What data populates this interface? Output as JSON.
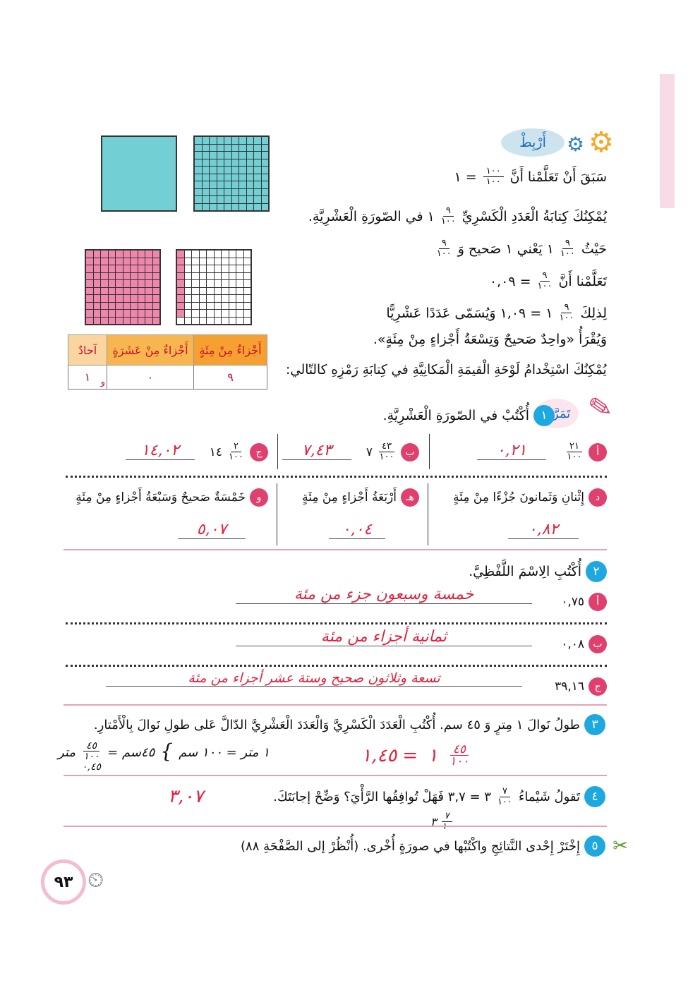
{
  "connect": {
    "badge": "أَرْبِطْ",
    "lines": [
      [
        "سَبَقَ أَنْ تَعَلَّمْنا أَنَّ",
        {
          "n": "١٠٠",
          "d": "١٠٠"
        },
        "= ١"
      ],
      [
        "يُمْكِنُكَ كِتابَةُ الْعَدَدِ الْكَسْرِيِّ",
        {
          "n": "٩",
          "d": "١٠٠"
        },
        "١ في الصّورَةِ الْعَشْرِيَّةِ."
      ],
      [
        "حَيْثُ",
        {
          "n": "٩",
          "d": "١٠٠"
        },
        "١ يَعْني ١ صَحيح وَ",
        {
          "n": "٩",
          "d": "١٠٠"
        }
      ],
      [
        "تَعَلَّمْنا أَنَّ",
        {
          "n": "٩",
          "d": "١٠٠"
        },
        "= ٠,٠٩"
      ],
      [
        "لِذلِكَ",
        {
          "n": "٩",
          "d": "١٠٠"
        },
        "١ = ١,٠٩ وَيُسَمّى عَدَدًا عَشْرِيًّا"
      ],
      [
        "وَيُقْرَأُ «واحِدٌ صَحيحٌ وَتِسْعَةُ أَجْزاءٍ مِنْ مِئَةٍ»."
      ],
      [
        "يُمْكِنُكَ اسْتِخْدامُ لَوْحَةِ الْقيمَةِ الْمَكانِيَّةِ في كِتابَةِ رَمْزِهِ كالتّالي:"
      ]
    ]
  },
  "models": {
    "hundredths_shaded": 9
  },
  "place_value": {
    "headers": [
      "أَجْزاءٌ مِنْ مِئَةٍ",
      "أَجْزاءٌ مِنْ عَشَرَةٍ",
      "آحادٌ"
    ],
    "values": [
      "٩",
      "٠",
      "١"
    ],
    "separator": "و",
    "colors": [
      "#f5a030",
      "#f8b650",
      "#fbd5a0"
    ]
  },
  "practice": {
    "label": "تَمَرَّنْ",
    "ex1": {
      "number": "١",
      "prompt": "أُكْتُبْ في الصّورَةِ الْعَشْرِيَّةِ.",
      "items": [
        {
          "letter": "أ",
          "whole": "",
          "n": "٢١",
          "d": "١٠٠",
          "answer": "٠,٢١"
        },
        {
          "letter": "ب",
          "whole": "٧",
          "n": "٤٣",
          "d": "١٠٠",
          "answer": "٧,٤٣"
        },
        {
          "letter": "ج",
          "whole": "١٤",
          "n": "٢",
          "d": "١٠٠",
          "answer": "١٤,٠٢"
        },
        {
          "letter": "د",
          "text": "إِثْنانِ وَثَمانونَ جُزْءًا مِنْ مِئَةٍ",
          "answer": "٠,٨٢"
        },
        {
          "letter": "هـ",
          "text": "أَرْبَعَةُ أَجْزاءٍ مِنْ مِئَةٍ",
          "answer": "٠,٠٤"
        },
        {
          "letter": "و",
          "text": "خَمْسَةٌ صَحيحٌ وَسَبْعَةُ أَجْزاءٍ مِنْ مِئَةٍ",
          "answer": "٥,٠٧"
        }
      ]
    },
    "ex2": {
      "number": "٢",
      "prompt": "أُكْتُبِ الِاسْمَ اللَّفْظِيَّ.",
      "items": [
        {
          "letter": "أ",
          "value": "٠,٧٥",
          "answer": "خمسة وسبعون جزء من مئة"
        },
        {
          "letter": "ب",
          "value": "٠,٠٨",
          "answer": "ثمانية أجزاء من مئة"
        },
        {
          "letter": "ج",
          "value": "٣٩,١٦",
          "answer": "تسعة وثلاثون صحيح وستة عشر أجزاء من مئة"
        }
      ]
    },
    "ex3": {
      "number": "٣",
      "prompt": "طولُ نَوالَ ١ مِترٍ وَ ٤٥ سم. أُكْتُبِ الْعَدَدَ الْكَسْرِيَّ وَالْعَدَدَ الْعَشْرِيَّ الدّالَّ عَلى طولِ نَوالَ بِالْأَمْتارِ.",
      "work": {
        "line1": "١ متر = ١٠٠ سم",
        "line2": "٤٥سم =",
        "frac_n": "٤٥",
        "frac_d": "١٠٠",
        "unit": "متر",
        "decimal": "٠,٤٥"
      },
      "answer": {
        "decimal": "١,٤٥ =",
        "whole": "١",
        "n": "٤٥",
        "d": "١٠٠"
      }
    },
    "ex4": {
      "number": "٤",
      "prompt_start": "تَقولُ شَيْماءُ",
      "n": "٧",
      "d": "١٠٠",
      "prompt_end": "٣ = ٣,٧ فَهَلْ تُوافِقُها الرَّأْيَ؟ وَضِّحْ إجابَتَكَ.",
      "work": {
        "whole": "٣",
        "n": "٧",
        "d": "١٠"
      },
      "answer": "٣,٠٧"
    },
    "ex5": {
      "number": "٥",
      "prompt": "إِخْتَرْ إِحْدى النَّتائِجِ واكْتُبْها في صورَةٍ أُخْرى. (أُنْظُرْ إلى الصَّفْحَةِ ٨٨)"
    }
  },
  "page_number": "٩٣"
}
